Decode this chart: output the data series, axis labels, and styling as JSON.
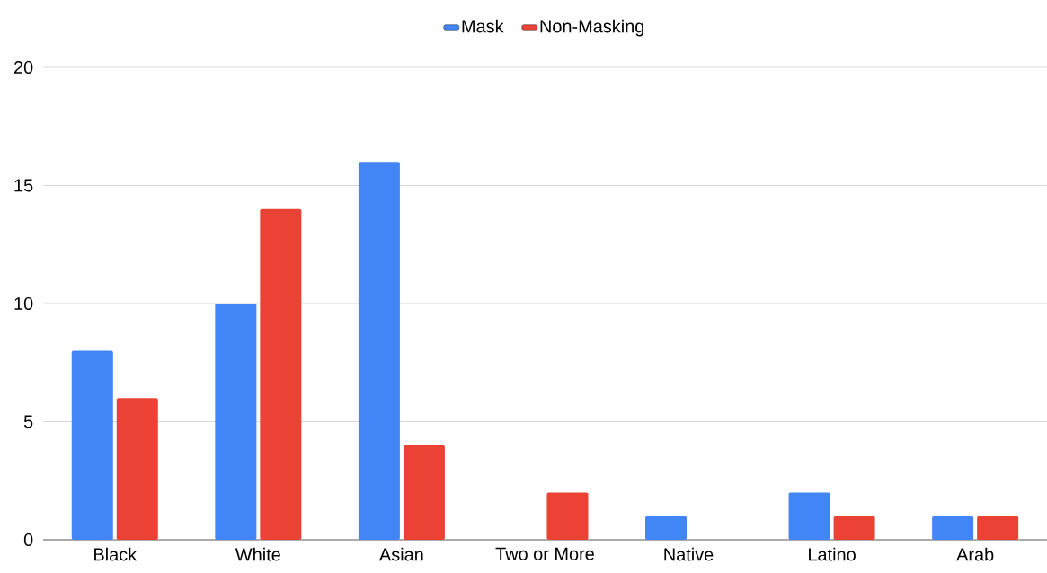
{
  "chart_data": {
    "type": "bar",
    "categories": [
      "Black",
      "White",
      "Asian",
      "Two or More",
      "Native",
      "Latino",
      "Arab"
    ],
    "series": [
      {
        "name": "Mask",
        "color": "#4285f4",
        "values": [
          8,
          10,
          16,
          0,
          1,
          2,
          1
        ]
      },
      {
        "name": "Non-Masking",
        "color": "#ea4335",
        "values": [
          6,
          14,
          4,
          2,
          0,
          1,
          1
        ]
      }
    ],
    "ylim": [
      0,
      20
    ],
    "yticks": [
      0,
      5,
      10,
      15,
      20
    ],
    "grid": "y",
    "legend": "top"
  }
}
